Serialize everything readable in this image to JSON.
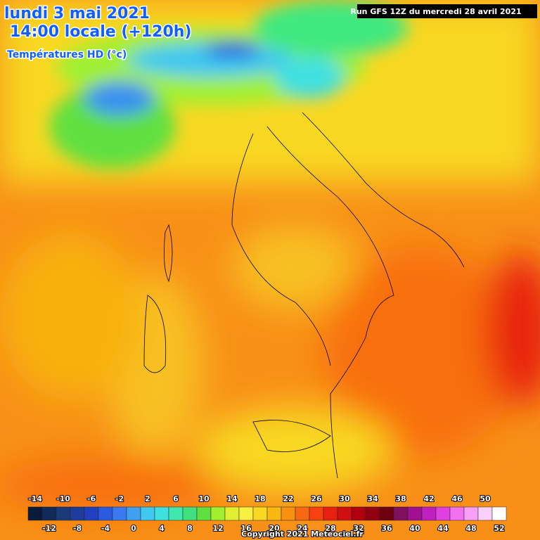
{
  "header": {
    "date": "lundi 3 mai 2021",
    "time": "14:00 locale (+120h)",
    "parameter": "Températures HD (°c)",
    "run": "Run GFS 12Z du mercredi 28 avril 2021"
  },
  "legend": {
    "values": [
      -14,
      -12,
      -10,
      -8,
      -6,
      -4,
      -2,
      0,
      2,
      4,
      6,
      8,
      10,
      12,
      14,
      16,
      18,
      20,
      22,
      24,
      26,
      28,
      30,
      32,
      34,
      36,
      38,
      40,
      42,
      44,
      46,
      48,
      50,
      52
    ],
    "colors": [
      "#0a1a3a",
      "#102a5a",
      "#1a3a7a",
      "#1e3c9c",
      "#2040c0",
      "#2a5ae0",
      "#3a7af0",
      "#40a0f0",
      "#40c8f0",
      "#40e0e0",
      "#40e8b0",
      "#40e080",
      "#60e040",
      "#a0f030",
      "#e0f030",
      "#f8f040",
      "#f8d820",
      "#f8b810",
      "#f89010",
      "#f86810",
      "#f84010",
      "#e82010",
      "#d01010",
      "#b00010",
      "#900010",
      "#700010",
      "#801060",
      "#a01090",
      "#c020c0",
      "#e040e0",
      "#f070f0",
      "#f8a0f8",
      "#fcd0fc",
      "#ffffff"
    ]
  },
  "footer": {
    "copyright": "Copyright 2021 Meteociel.fr"
  }
}
